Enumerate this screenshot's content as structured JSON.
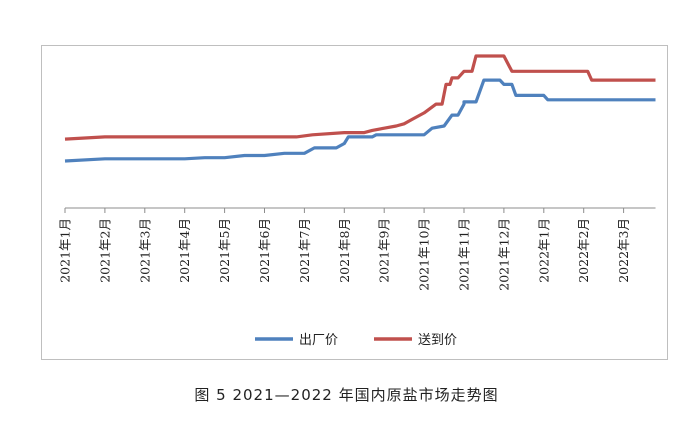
{
  "caption": "图 5  2021—2022 年国内原盐市场走势图",
  "chart_data": {
    "type": "line",
    "title": "",
    "xlabel": "",
    "ylabel": "",
    "x": [
      "2021年1月",
      "2021年2月",
      "2021年3月",
      "2021年4月",
      "2021年5月",
      "2021年6月",
      "2021年7月",
      "2021年8月",
      "2021年9月",
      "2021年10月",
      "2021年11月",
      "2021年12月",
      "2022年1月",
      "2022年2月",
      "2022年3月"
    ],
    "tick_labels": [
      "2021年1月",
      "2021年2月",
      "2021年3月",
      "2021年4月",
      "2021年5月",
      "2021年6月",
      "2021年7月",
      "2021年8月",
      "2021年9月",
      "2021年10月",
      "2021年11月",
      "2021年12月",
      "2022年1月",
      "2022年2月",
      "2022年3月"
    ],
    "y_axis_visible": false,
    "grid": false,
    "legend_position": "bottom",
    "series": [
      {
        "name": "出厂价",
        "color": "#4f81bd",
        "points": [
          [
            0,
            0
          ],
          [
            1,
            1
          ],
          [
            2,
            1
          ],
          [
            3,
            1
          ],
          [
            3.5,
            1.5
          ],
          [
            4,
            1.5
          ],
          [
            4.5,
            2.5
          ],
          [
            5,
            2.5
          ],
          [
            5.5,
            3.5
          ],
          [
            6,
            3.5
          ],
          [
            6.25,
            6
          ],
          [
            6.8,
            6
          ],
          [
            7,
            8
          ],
          [
            7.1,
            11
          ],
          [
            7.7,
            11
          ],
          [
            7.8,
            12
          ],
          [
            8.5,
            12
          ],
          [
            9,
            12
          ],
          [
            9.2,
            15
          ],
          [
            9.5,
            16
          ],
          [
            9.7,
            21
          ],
          [
            9.85,
            21
          ],
          [
            10,
            26
          ],
          [
            10,
            27
          ],
          [
            10.3,
            27
          ],
          [
            10.5,
            37
          ],
          [
            10.9,
            37
          ],
          [
            11,
            35
          ],
          [
            11.2,
            35
          ],
          [
            11.3,
            30
          ],
          [
            12,
            30
          ],
          [
            12.1,
            28
          ],
          [
            14.8,
            28
          ]
        ]
      },
      {
        "name": "送到价",
        "color": "#c0504d",
        "points": [
          [
            0,
            10
          ],
          [
            1,
            11
          ],
          [
            2,
            11
          ],
          [
            3,
            11
          ],
          [
            4,
            11
          ],
          [
            5,
            11
          ],
          [
            5.8,
            11
          ],
          [
            6.2,
            12
          ],
          [
            7,
            13
          ],
          [
            7.5,
            13
          ],
          [
            7.7,
            14
          ],
          [
            8,
            15
          ],
          [
            8.3,
            16
          ],
          [
            8.5,
            17
          ],
          [
            8.7,
            19
          ],
          [
            9,
            22
          ],
          [
            9.3,
            26
          ],
          [
            9.45,
            26
          ],
          [
            9.55,
            35
          ],
          [
            9.65,
            35
          ],
          [
            9.7,
            38
          ],
          [
            9.85,
            38
          ],
          [
            10,
            41
          ],
          [
            10.2,
            41
          ],
          [
            10.3,
            48
          ],
          [
            11,
            48
          ],
          [
            11.2,
            41
          ],
          [
            13.1,
            41
          ],
          [
            13.2,
            37
          ],
          [
            14.8,
            37
          ]
        ]
      }
    ]
  }
}
